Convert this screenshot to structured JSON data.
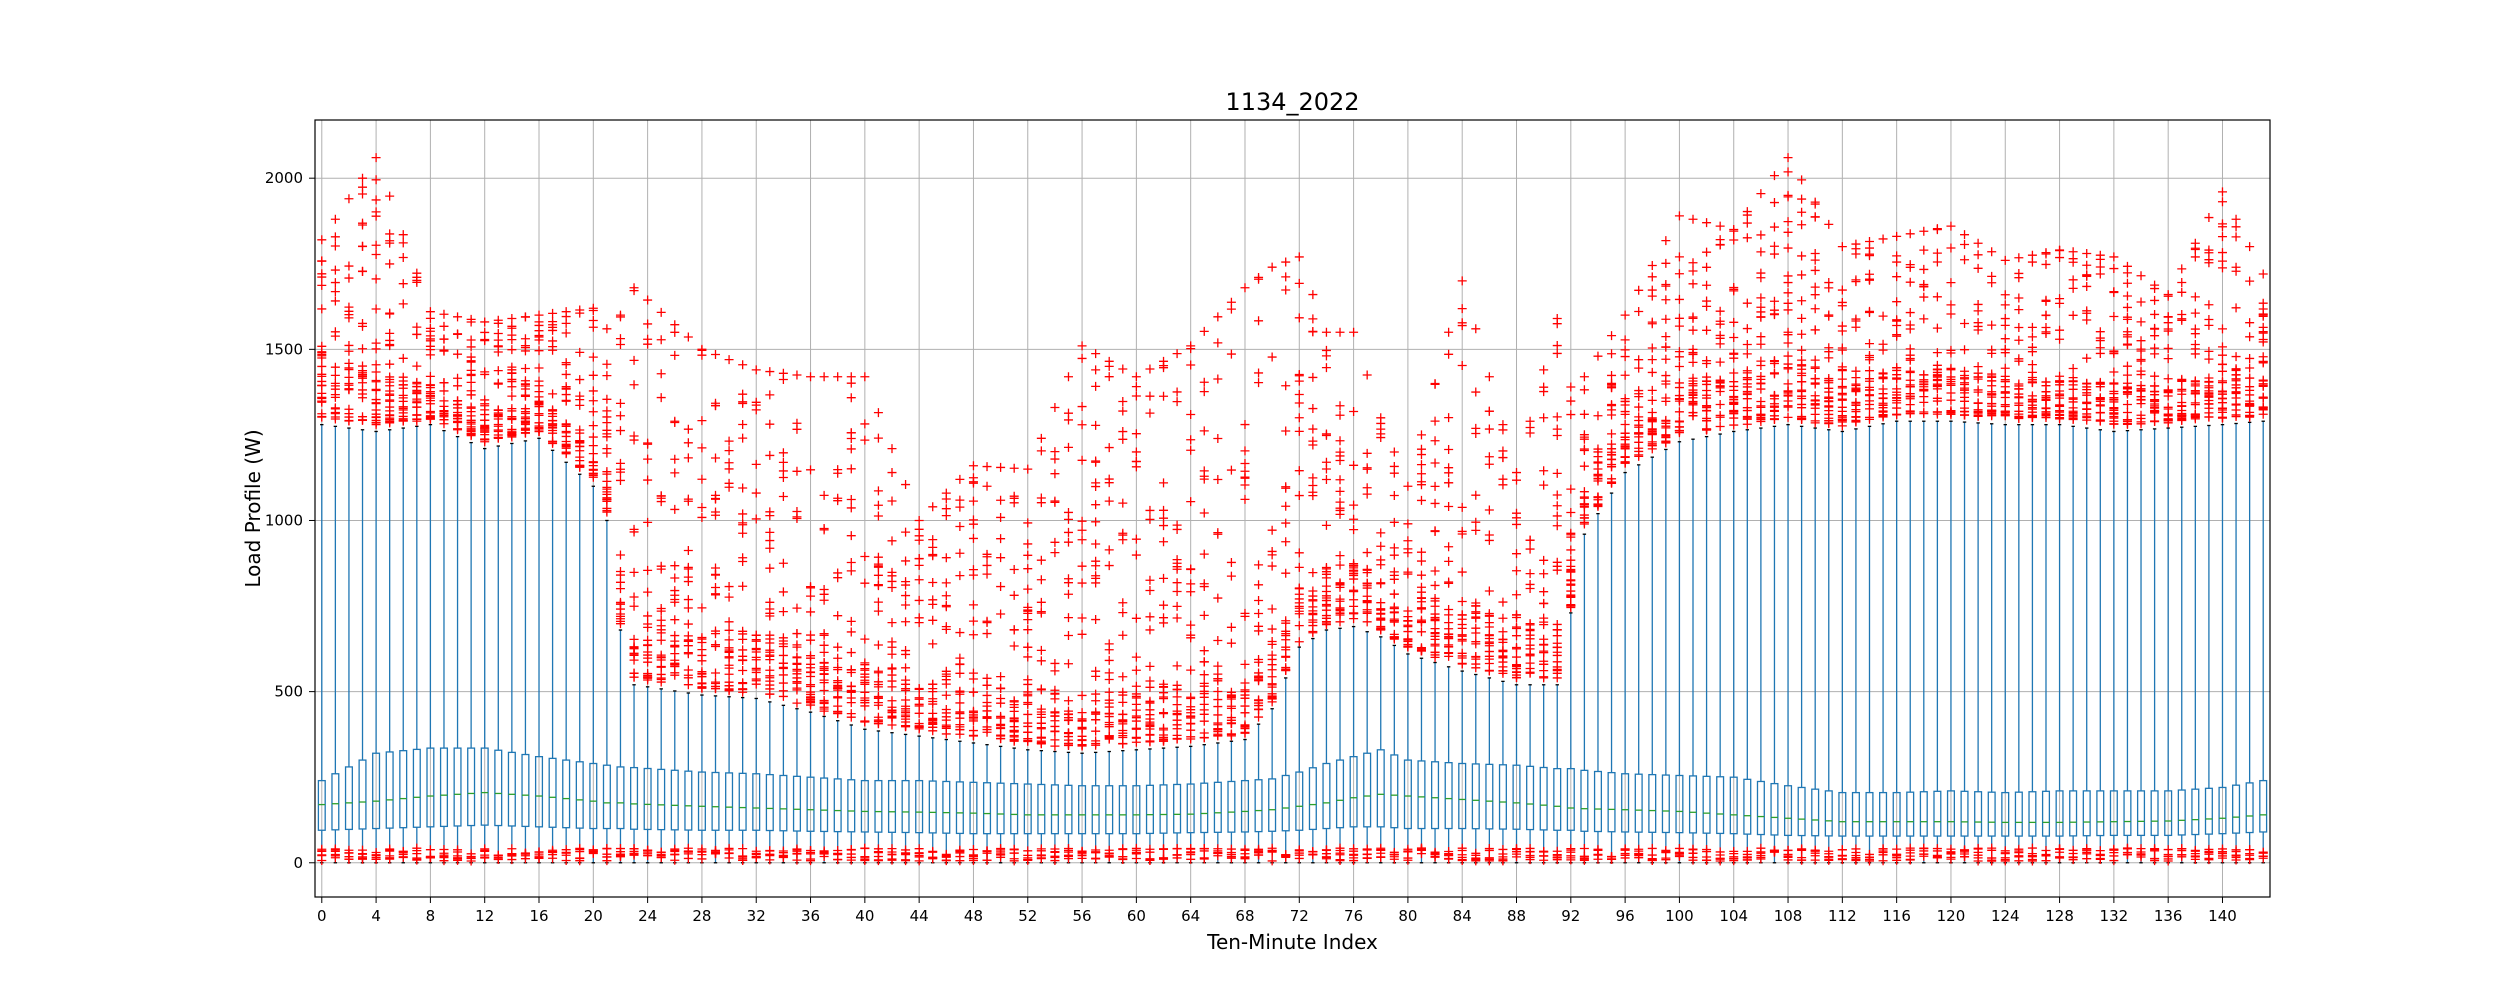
{
  "chart_data": {
    "type": "box",
    "title": "1134_2022",
    "xlabel": "Ten-Minute Index",
    "ylabel": "Load Profile (W)",
    "x_range": [
      -0.5,
      143.5
    ],
    "ylim": [
      -100,
      2170
    ],
    "x_ticks": [
      0,
      4,
      8,
      12,
      16,
      20,
      24,
      28,
      32,
      36,
      40,
      44,
      48,
      52,
      56,
      60,
      64,
      68,
      72,
      76,
      80,
      84,
      88,
      92,
      96,
      100,
      104,
      108,
      112,
      116,
      120,
      124,
      128,
      132,
      136,
      140
    ],
    "y_ticks": [
      0,
      500,
      1000,
      1500,
      2000
    ],
    "grid": true,
    "box_color": "#1f77b4",
    "median_color": "#2ca02c",
    "outlier_color": "#ff0000",
    "keyframes": [
      {
        "i": 0,
        "q1": 95,
        "median": 170,
        "q3": 240,
        "whisker_low": 0,
        "whisker_high": 1280,
        "max": 1820
      },
      {
        "i": 4,
        "q1": 100,
        "median": 180,
        "q3": 320,
        "whisker_low": 0,
        "whisker_high": 1260,
        "max": 2060
      },
      {
        "i": 8,
        "q1": 105,
        "median": 195,
        "q3": 335,
        "whisker_low": 0,
        "whisker_high": 1280,
        "max": 1610
      },
      {
        "i": 12,
        "q1": 110,
        "median": 205,
        "q3": 335,
        "whisker_low": 0,
        "whisker_high": 1210,
        "max": 1580
      },
      {
        "i": 16,
        "q1": 105,
        "median": 195,
        "q3": 310,
        "whisker_low": 0,
        "whisker_high": 1240,
        "max": 1600
      },
      {
        "i": 20,
        "q1": 100,
        "median": 180,
        "q3": 290,
        "whisker_low": 0,
        "whisker_high": 1100,
        "max": 1620
      },
      {
        "i": 21,
        "q1": 100,
        "median": 175,
        "q3": 285,
        "whisker_low": 0,
        "whisker_high": 1000,
        "max": 1560
      },
      {
        "i": 22,
        "q1": 100,
        "median": 175,
        "q3": 280,
        "whisker_low": 0,
        "whisker_high": 680,
        "max": 1600
      },
      {
        "i": 23,
        "q1": 98,
        "median": 172,
        "q3": 278,
        "whisker_low": 0,
        "whisker_high": 520,
        "max": 1680
      },
      {
        "i": 28,
        "q1": 95,
        "median": 165,
        "q3": 265,
        "whisker_low": 0,
        "whisker_high": 490,
        "max": 1500
      },
      {
        "i": 32,
        "q1": 95,
        "median": 160,
        "q3": 260,
        "whisker_low": 0,
        "whisker_high": 480,
        "max": 1440
      },
      {
        "i": 36,
        "q1": 92,
        "median": 155,
        "q3": 250,
        "whisker_low": 0,
        "whisker_high": 440,
        "max": 1420
      },
      {
        "i": 40,
        "q1": 90,
        "median": 150,
        "q3": 240,
        "whisker_low": 0,
        "whisker_high": 390,
        "max": 1420
      },
      {
        "i": 44,
        "q1": 88,
        "median": 148,
        "q3": 240,
        "whisker_low": 0,
        "whisker_high": 370,
        "max": 1000
      },
      {
        "i": 48,
        "q1": 85,
        "median": 145,
        "q3": 235,
        "whisker_low": 0,
        "whisker_high": 350,
        "max": 1160
      },
      {
        "i": 52,
        "q1": 85,
        "median": 140,
        "q3": 230,
        "whisker_low": 0,
        "whisker_high": 330,
        "max": 1150
      },
      {
        "i": 56,
        "q1": 85,
        "median": 140,
        "q3": 225,
        "whisker_low": 0,
        "whisker_high": 320,
        "max": 1510
      },
      {
        "i": 60,
        "q1": 85,
        "median": 140,
        "q3": 225,
        "whisker_low": 0,
        "whisker_high": 330,
        "max": 1420
      },
      {
        "i": 64,
        "q1": 88,
        "median": 142,
        "q3": 230,
        "whisker_low": 0,
        "whisker_high": 340,
        "max": 1510
      },
      {
        "i": 68,
        "q1": 90,
        "median": 150,
        "q3": 240,
        "whisker_low": 0,
        "whisker_high": 360,
        "max": 1680
      },
      {
        "i": 70,
        "q1": 92,
        "median": 155,
        "q3": 245,
        "whisker_low": 0,
        "whisker_high": 450,
        "max": 1740
      },
      {
        "i": 72,
        "q1": 95,
        "median": 165,
        "q3": 265,
        "whisker_low": 0,
        "whisker_high": 630,
        "max": 1770
      },
      {
        "i": 74,
        "q1": 100,
        "median": 175,
        "q3": 290,
        "whisker_low": 0,
        "whisker_high": 680,
        "max": 1550
      },
      {
        "i": 76,
        "q1": 105,
        "median": 190,
        "q3": 310,
        "whisker_low": 0,
        "whisker_high": 690,
        "max": 1550
      },
      {
        "i": 78,
        "q1": 105,
        "median": 200,
        "q3": 330,
        "whisker_low": 0,
        "whisker_high": 660,
        "max": 1300
      },
      {
        "i": 80,
        "q1": 100,
        "median": 195,
        "q3": 300,
        "whisker_low": 0,
        "whisker_high": 610,
        "max": 1100
      },
      {
        "i": 84,
        "q1": 100,
        "median": 185,
        "q3": 290,
        "whisker_low": 0,
        "whisker_high": 560,
        "max": 1700
      },
      {
        "i": 88,
        "q1": 98,
        "median": 175,
        "q3": 285,
        "whisker_low": 0,
        "whisker_high": 520,
        "max": 1140
      },
      {
        "i": 91,
        "q1": 95,
        "median": 165,
        "q3": 275,
        "whisker_low": 0,
        "whisker_high": 520,
        "max": 1590
      },
      {
        "i": 92,
        "q1": 95,
        "median": 160,
        "q3": 275,
        "whisker_low": 0,
        "whisker_high": 730,
        "max": 1390
      },
      {
        "i": 93,
        "q1": 92,
        "median": 158,
        "q3": 270,
        "whisker_low": 0,
        "whisker_high": 960,
        "max": 1420
      },
      {
        "i": 96,
        "q1": 90,
        "median": 155,
        "q3": 260,
        "whisker_low": 0,
        "whisker_high": 1140,
        "max": 1600
      },
      {
        "i": 100,
        "q1": 88,
        "median": 150,
        "q3": 255,
        "whisker_low": 0,
        "whisker_high": 1230,
        "max": 1890
      },
      {
        "i": 104,
        "q1": 85,
        "median": 140,
        "q3": 250,
        "whisker_low": 0,
        "whisker_high": 1260,
        "max": 1850
      },
      {
        "i": 108,
        "q1": 80,
        "median": 130,
        "q3": 225,
        "whisker_low": 0,
        "whisker_high": 1280,
        "max": 2060
      },
      {
        "i": 112,
        "q1": 78,
        "median": 120,
        "q3": 205,
        "whisker_low": 0,
        "whisker_high": 1260,
        "max": 1800
      },
      {
        "i": 116,
        "q1": 78,
        "median": 120,
        "q3": 205,
        "whisker_low": 0,
        "whisker_high": 1290,
        "max": 1830
      },
      {
        "i": 120,
        "q1": 78,
        "median": 120,
        "q3": 210,
        "whisker_low": 0,
        "whisker_high": 1290,
        "max": 1860
      },
      {
        "i": 124,
        "q1": 78,
        "median": 118,
        "q3": 205,
        "whisker_low": 0,
        "whisker_high": 1280,
        "max": 1760
      },
      {
        "i": 128,
        "q1": 78,
        "median": 118,
        "q3": 210,
        "whisker_low": 0,
        "whisker_high": 1280,
        "max": 1790
      },
      {
        "i": 132,
        "q1": 80,
        "median": 120,
        "q3": 210,
        "whisker_low": 0,
        "whisker_high": 1260,
        "max": 1770
      },
      {
        "i": 136,
        "q1": 80,
        "median": 122,
        "q3": 210,
        "whisker_low": 0,
        "whisker_high": 1270,
        "max": 1660
      },
      {
        "i": 140,
        "q1": 85,
        "median": 130,
        "q3": 220,
        "whisker_low": 0,
        "whisker_high": 1280,
        "max": 1960
      },
      {
        "i": 143,
        "q1": 90,
        "median": 140,
        "q3": 240,
        "whisker_low": 0,
        "whisker_high": 1290,
        "max": 1720
      }
    ]
  }
}
